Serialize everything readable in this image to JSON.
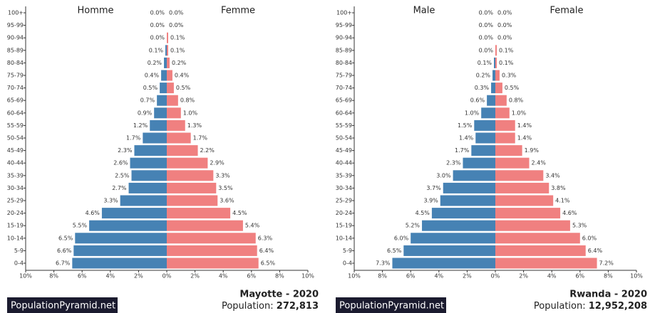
{
  "chart_data": [
    {
      "type": "pyramid",
      "title": "Mayotte - 2020",
      "population_label": "Population:",
      "population": "272,813",
      "brand": "PopulationPyramid.net",
      "categories": [
        "100+",
        "95-99",
        "90-94",
        "85-89",
        "80-84",
        "75-79",
        "70-74",
        "65-69",
        "60-64",
        "55-59",
        "50-54",
        "45-49",
        "40-44",
        "35-39",
        "30-34",
        "25-29",
        "20-24",
        "15-19",
        "10-14",
        "5-9",
        "0-4"
      ],
      "series": [
        {
          "name": "Homme",
          "color": "#4682b4",
          "side": "left",
          "values": [
            0.0,
            0.0,
            0.0,
            0.1,
            0.2,
            0.4,
            0.5,
            0.7,
            0.9,
            1.2,
            1.7,
            2.3,
            2.6,
            2.5,
            2.7,
            3.3,
            4.6,
            5.5,
            6.5,
            6.6,
            6.7
          ],
          "value_labels": [
            "0.0%",
            "0.0%",
            "0.0%",
            "0.1%",
            "0.2%",
            "0.4%",
            "0.5%",
            "0.7%",
            "0.9%",
            "1.2%",
            "1.7%",
            "2.3%",
            "2.6%",
            "2.5%",
            "2.7%",
            "3.3%",
            "4.6%",
            "5.5%",
            "6.5%",
            "6.6%",
            "6.7%"
          ]
        },
        {
          "name": "Femme",
          "color": "#f08080",
          "side": "right",
          "values": [
            0.0,
            0.0,
            0.1,
            0.1,
            0.2,
            0.4,
            0.5,
            0.8,
            1.0,
            1.3,
            1.7,
            2.2,
            2.9,
            3.3,
            3.5,
            3.6,
            4.5,
            5.4,
            6.3,
            6.4,
            6.5
          ],
          "value_labels": [
            "0.0%",
            "0.0%",
            "0.1%",
            "0.1%",
            "0.2%",
            "0.4%",
            "0.5%",
            "0.8%",
            "1.0%",
            "1.3%",
            "1.7%",
            "2.2%",
            "2.9%",
            "3.3%",
            "3.5%",
            "3.6%",
            "4.5%",
            "5.4%",
            "6.3%",
            "6.4%",
            "6.5%"
          ]
        }
      ],
      "xlim": [
        -10,
        10
      ],
      "xticks": [
        {
          "value": -10,
          "label": "10%"
        },
        {
          "value": -8,
          "label": "8%"
        },
        {
          "value": -6,
          "label": "6%"
        },
        {
          "value": -4,
          "label": "4%"
        },
        {
          "value": -2,
          "label": "2%"
        },
        {
          "value": 0,
          "label": "0%"
        },
        {
          "value": 2,
          "label": "2%"
        },
        {
          "value": 4,
          "label": "4%"
        },
        {
          "value": 6,
          "label": "6%"
        },
        {
          "value": 8,
          "label": "8%"
        },
        {
          "value": 10,
          "label": "10%"
        }
      ]
    },
    {
      "type": "pyramid",
      "title": "Rwanda - 2020",
      "population_label": "Population:",
      "population": "12,952,208",
      "brand": "PopulationPyramid.net",
      "categories": [
        "100+",
        "95-99",
        "90-94",
        "85-89",
        "80-84",
        "75-79",
        "70-74",
        "65-69",
        "60-64",
        "55-59",
        "50-54",
        "45-49",
        "40-44",
        "35-39",
        "30-34",
        "25-29",
        "20-24",
        "15-19",
        "10-14",
        "5-9",
        "0-4"
      ],
      "series": [
        {
          "name": "Male",
          "color": "#4682b4",
          "side": "left",
          "values": [
            0.0,
            0.0,
            0.0,
            0.0,
            0.1,
            0.2,
            0.3,
            0.6,
            1.0,
            1.5,
            1.4,
            1.7,
            2.3,
            3.0,
            3.7,
            3.9,
            4.5,
            5.2,
            6.0,
            6.5,
            7.3
          ],
          "value_labels": [
            "0.0%",
            "0.0%",
            "0.0%",
            "0.0%",
            "0.1%",
            "0.2%",
            "0.3%",
            "0.6%",
            "1.0%",
            "1.5%",
            "1.4%",
            "1.7%",
            "2.3%",
            "3.0%",
            "3.7%",
            "3.9%",
            "4.5%",
            "5.2%",
            "6.0%",
            "6.5%",
            "7.3%"
          ]
        },
        {
          "name": "Female",
          "color": "#f08080",
          "side": "right",
          "values": [
            0.0,
            0.0,
            0.0,
            0.1,
            0.1,
            0.3,
            0.5,
            0.8,
            1.0,
            1.4,
            1.4,
            1.9,
            2.4,
            3.4,
            3.8,
            4.1,
            4.6,
            5.3,
            6.0,
            6.4,
            7.2
          ],
          "value_labels": [
            "0.0%",
            "0.0%",
            "0.0%",
            "0.1%",
            "0.1%",
            "0.3%",
            "0.5%",
            "0.8%",
            "1.0%",
            "1.4%",
            "1.4%",
            "1.9%",
            "2.4%",
            "3.4%",
            "3.8%",
            "4.1%",
            "4.6%",
            "5.3%",
            "6.0%",
            "6.4%",
            "7.2%"
          ]
        }
      ],
      "xlim": [
        -10,
        10
      ],
      "xticks": [
        {
          "value": -10,
          "label": "10%"
        },
        {
          "value": -8,
          "label": "8%"
        },
        {
          "value": -6,
          "label": "6%"
        },
        {
          "value": -4,
          "label": "4%"
        },
        {
          "value": -2,
          "label": "2%"
        },
        {
          "value": 0,
          "label": "0%"
        },
        {
          "value": 2,
          "label": "2%"
        },
        {
          "value": 4,
          "label": "4%"
        },
        {
          "value": 6,
          "label": "6%"
        },
        {
          "value": 8,
          "label": "8%"
        },
        {
          "value": 10,
          "label": "10%"
        }
      ]
    }
  ]
}
